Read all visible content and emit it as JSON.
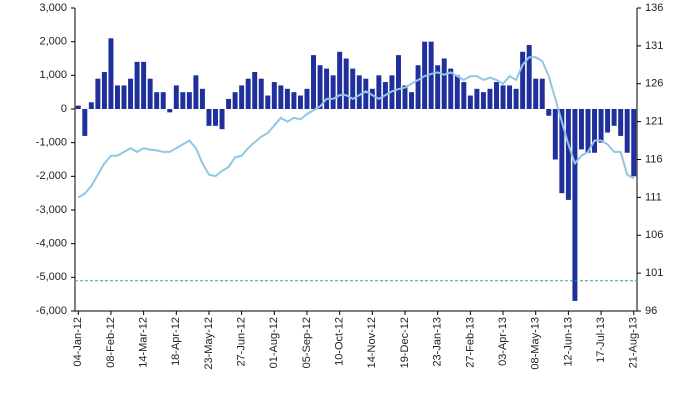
{
  "chart_data": {
    "type": "bar_line",
    "categories": [
      "04-Jan-12",
      null,
      null,
      null,
      null,
      "08-Feb-12",
      null,
      null,
      null,
      null,
      "14-Mar-12",
      null,
      null,
      null,
      null,
      "18-Apr-12",
      null,
      null,
      null,
      null,
      "23-May-12",
      null,
      null,
      null,
      null,
      "27-Jun-12",
      null,
      null,
      null,
      null,
      "01-Aug-12",
      null,
      null,
      null,
      null,
      "05-Sep-12",
      null,
      null,
      null,
      null,
      "10-Oct-12",
      null,
      null,
      null,
      null,
      "14-Nov-12",
      null,
      null,
      null,
      null,
      "19-Dec-12",
      null,
      null,
      null,
      null,
      "23-Jan-13",
      null,
      null,
      null,
      null,
      "27-Feb-13",
      null,
      null,
      null,
      null,
      "03-Apr-13",
      null,
      null,
      null,
      null,
      "08-May-13",
      null,
      null,
      null,
      null,
      "12-Jun-13",
      null,
      null,
      null,
      null,
      "17-Jul-13",
      null,
      null,
      null,
      null,
      "21-Aug-13"
    ],
    "series": [
      {
        "type": "bar",
        "color": "#1f2f9c",
        "values": [
          100,
          -800,
          200,
          900,
          1100,
          2100,
          700,
          700,
          900,
          1400,
          1400,
          900,
          500,
          500,
          -100,
          700,
          500,
          500,
          1000,
          600,
          -500,
          -500,
          -600,
          300,
          500,
          700,
          900,
          1100,
          900,
          400,
          800,
          700,
          600,
          500,
          400,
          600,
          1600,
          1300,
          1200,
          1000,
          1700,
          1500,
          1200,
          1000,
          900,
          600,
          1000,
          800,
          1000,
          1600,
          700,
          500,
          1300,
          2000,
          2000,
          1300,
          1500,
          1200,
          1000,
          800,
          400,
          600,
          500,
          600,
          800,
          700,
          700,
          600,
          1700,
          1900,
          900,
          900,
          -200,
          -1500,
          -2500,
          -2700,
          -5700,
          -1200,
          -1300,
          -1300,
          -1000,
          -700,
          -500,
          -800,
          -1300,
          -2000
        ]
      },
      {
        "type": "line",
        "axis": "y2",
        "color": "#93c6e2",
        "values": [
          111,
          111.5,
          112.5,
          114,
          115.5,
          116.5,
          116.5,
          117,
          117.5,
          117,
          117.5,
          117.3,
          117.2,
          117,
          117,
          117.5,
          118,
          118.5,
          117.5,
          115.5,
          114,
          113.8,
          114.5,
          115,
          116.3,
          116.5,
          117.5,
          118.3,
          119,
          119.5,
          120.5,
          121.5,
          121,
          121.5,
          121.3,
          122,
          122.5,
          123,
          124,
          124,
          124.5,
          124.5,
          124,
          124.5,
          125,
          124.5,
          124,
          124.5,
          125,
          125.3,
          125.5,
          126,
          126.5,
          127,
          127.3,
          127.5,
          127.2,
          127.5,
          127,
          126.5,
          127,
          127,
          126.5,
          126.8,
          126.5,
          126,
          127,
          126.5,
          128.5,
          129.5,
          129.5,
          129,
          127,
          124,
          121,
          118,
          115.5,
          116.5,
          117,
          118.5,
          118.5,
          118,
          117,
          117,
          114,
          113.5
        ]
      }
    ],
    "ylim": [
      -6000,
      3000
    ],
    "yticks": [
      {
        "value": -6000,
        "label": "-6,000"
      },
      {
        "value": -5000,
        "label": "-5,000"
      },
      {
        "value": -4000,
        "label": "-4,000"
      },
      {
        "value": -3000,
        "label": "-3,000"
      },
      {
        "value": -2000,
        "label": "-2,000"
      },
      {
        "value": -1000,
        "label": "-1,000"
      },
      0,
      {
        "value": 1000,
        "label": "1,000"
      },
      {
        "value": 2000,
        "label": "2,000"
      },
      {
        "value": 3000,
        "label": "3,000"
      }
    ],
    "y2lim": [
      96,
      136
    ],
    "y2ticks": [
      96,
      101,
      106,
      111,
      116,
      121,
      126,
      131,
      136
    ],
    "reference_line": {
      "value": 100,
      "axis": "y2",
      "color": "#3aa876"
    }
  }
}
